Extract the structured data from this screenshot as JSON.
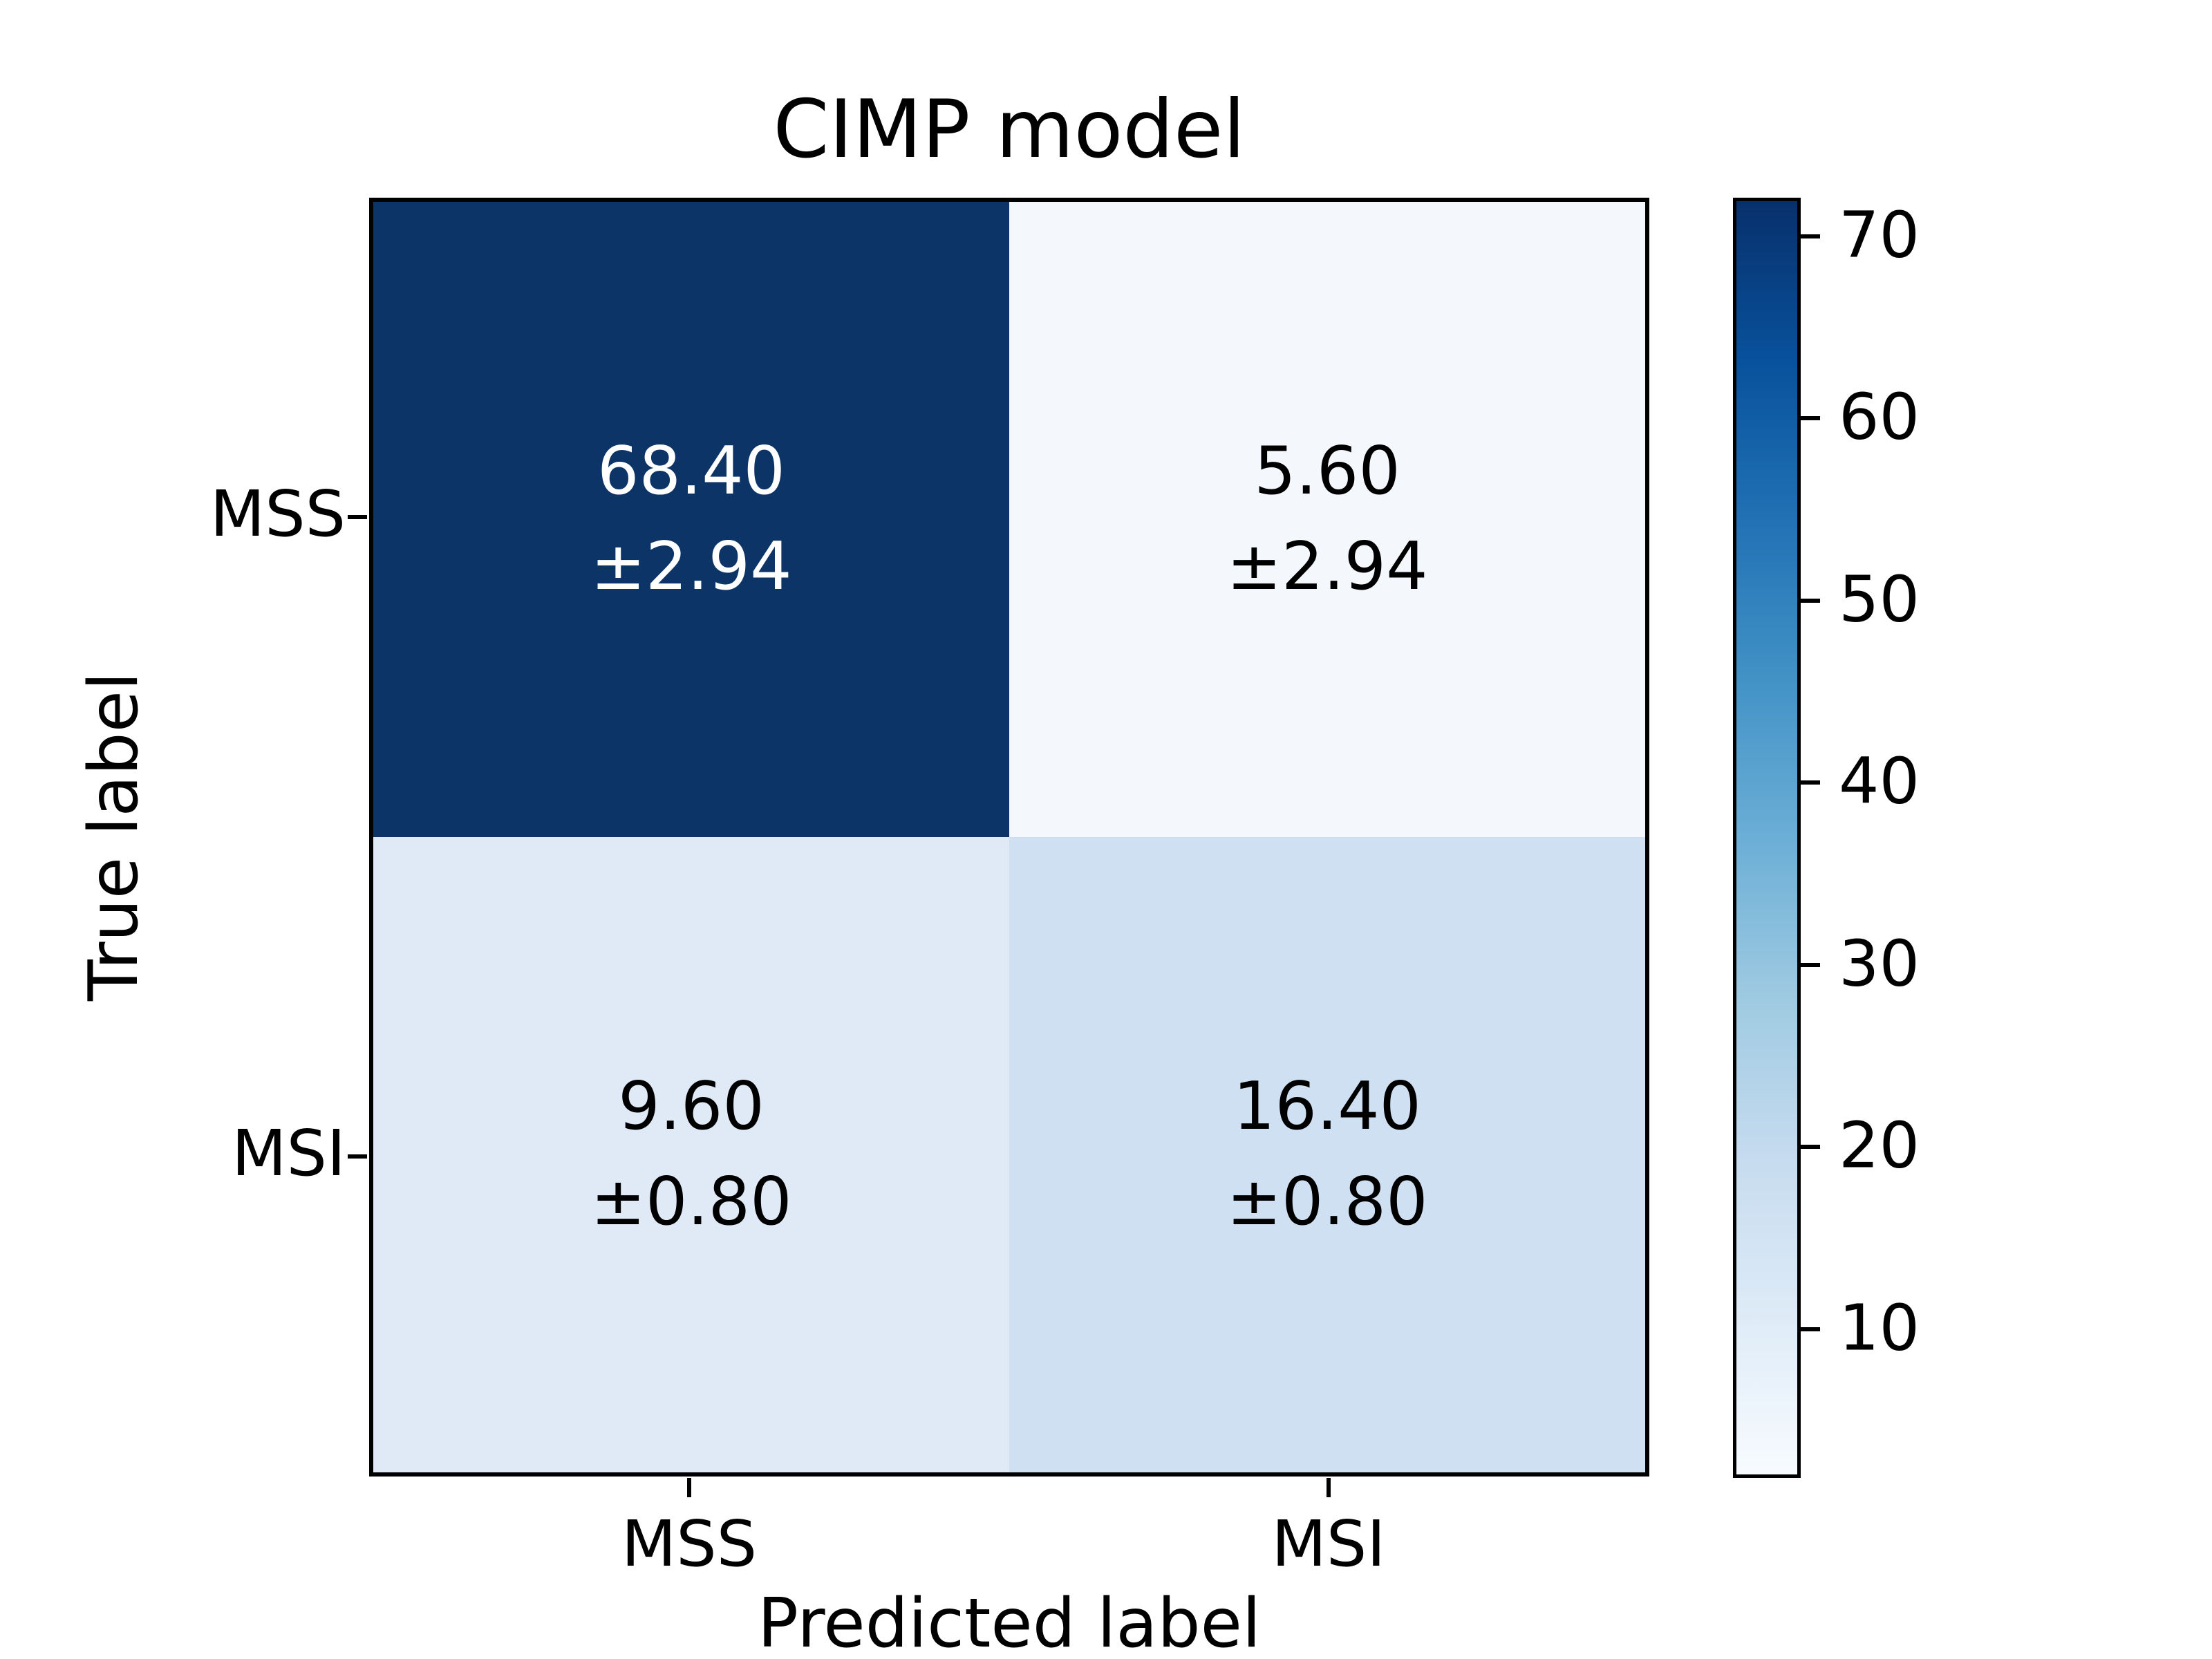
{
  "chart_data": {
    "type": "heatmap",
    "title": "CIMP model",
    "xlabel": "Predicted label",
    "ylabel": "True label",
    "x_tick_labels": [
      "MSS",
      "MSI"
    ],
    "y_tick_labels": [
      "MSS",
      "MSI"
    ],
    "rows": [
      "MSS",
      "MSI"
    ],
    "cols": [
      "MSS",
      "MSI"
    ],
    "values": [
      [
        68.4,
        5.6
      ],
      [
        9.6,
        16.4
      ]
    ],
    "stds": [
      [
        2.94,
        2.94
      ],
      [
        0.8,
        0.8
      ]
    ],
    "cells": [
      {
        "row": "MSS",
        "col": "MSS",
        "line1": "68.40",
        "line2": "±2.94",
        "bg": "#0d3467",
        "text_color": "#ffffff"
      },
      {
        "row": "MSS",
        "col": "MSI",
        "line1": "5.60",
        "line2": "±2.94",
        "bg": "#f4f8fd",
        "text_color": "#000000"
      },
      {
        "row": "MSI",
        "col": "MSS",
        "line1": "9.60",
        "line2": "±0.80",
        "bg": "#dfeaf6",
        "text_color": "#000000"
      },
      {
        "row": "MSI",
        "col": "MSI",
        "line1": "16.40",
        "line2": "±0.80",
        "bg": "#cfe0f2",
        "text_color": "#000000"
      }
    ],
    "colormap": "Blues",
    "grid": false,
    "legend": false,
    "colorbar": {
      "tick_labels": [
        "70",
        "60",
        "50",
        "40",
        "30",
        "20",
        "10"
      ],
      "gradient_top_to_bottom": [
        "#08306b",
        "#08519c",
        "#2171b5",
        "#4292c6",
        "#6baed6",
        "#9ecae1",
        "#c6dbef",
        "#deebf7",
        "#f7fbff"
      ]
    }
  }
}
